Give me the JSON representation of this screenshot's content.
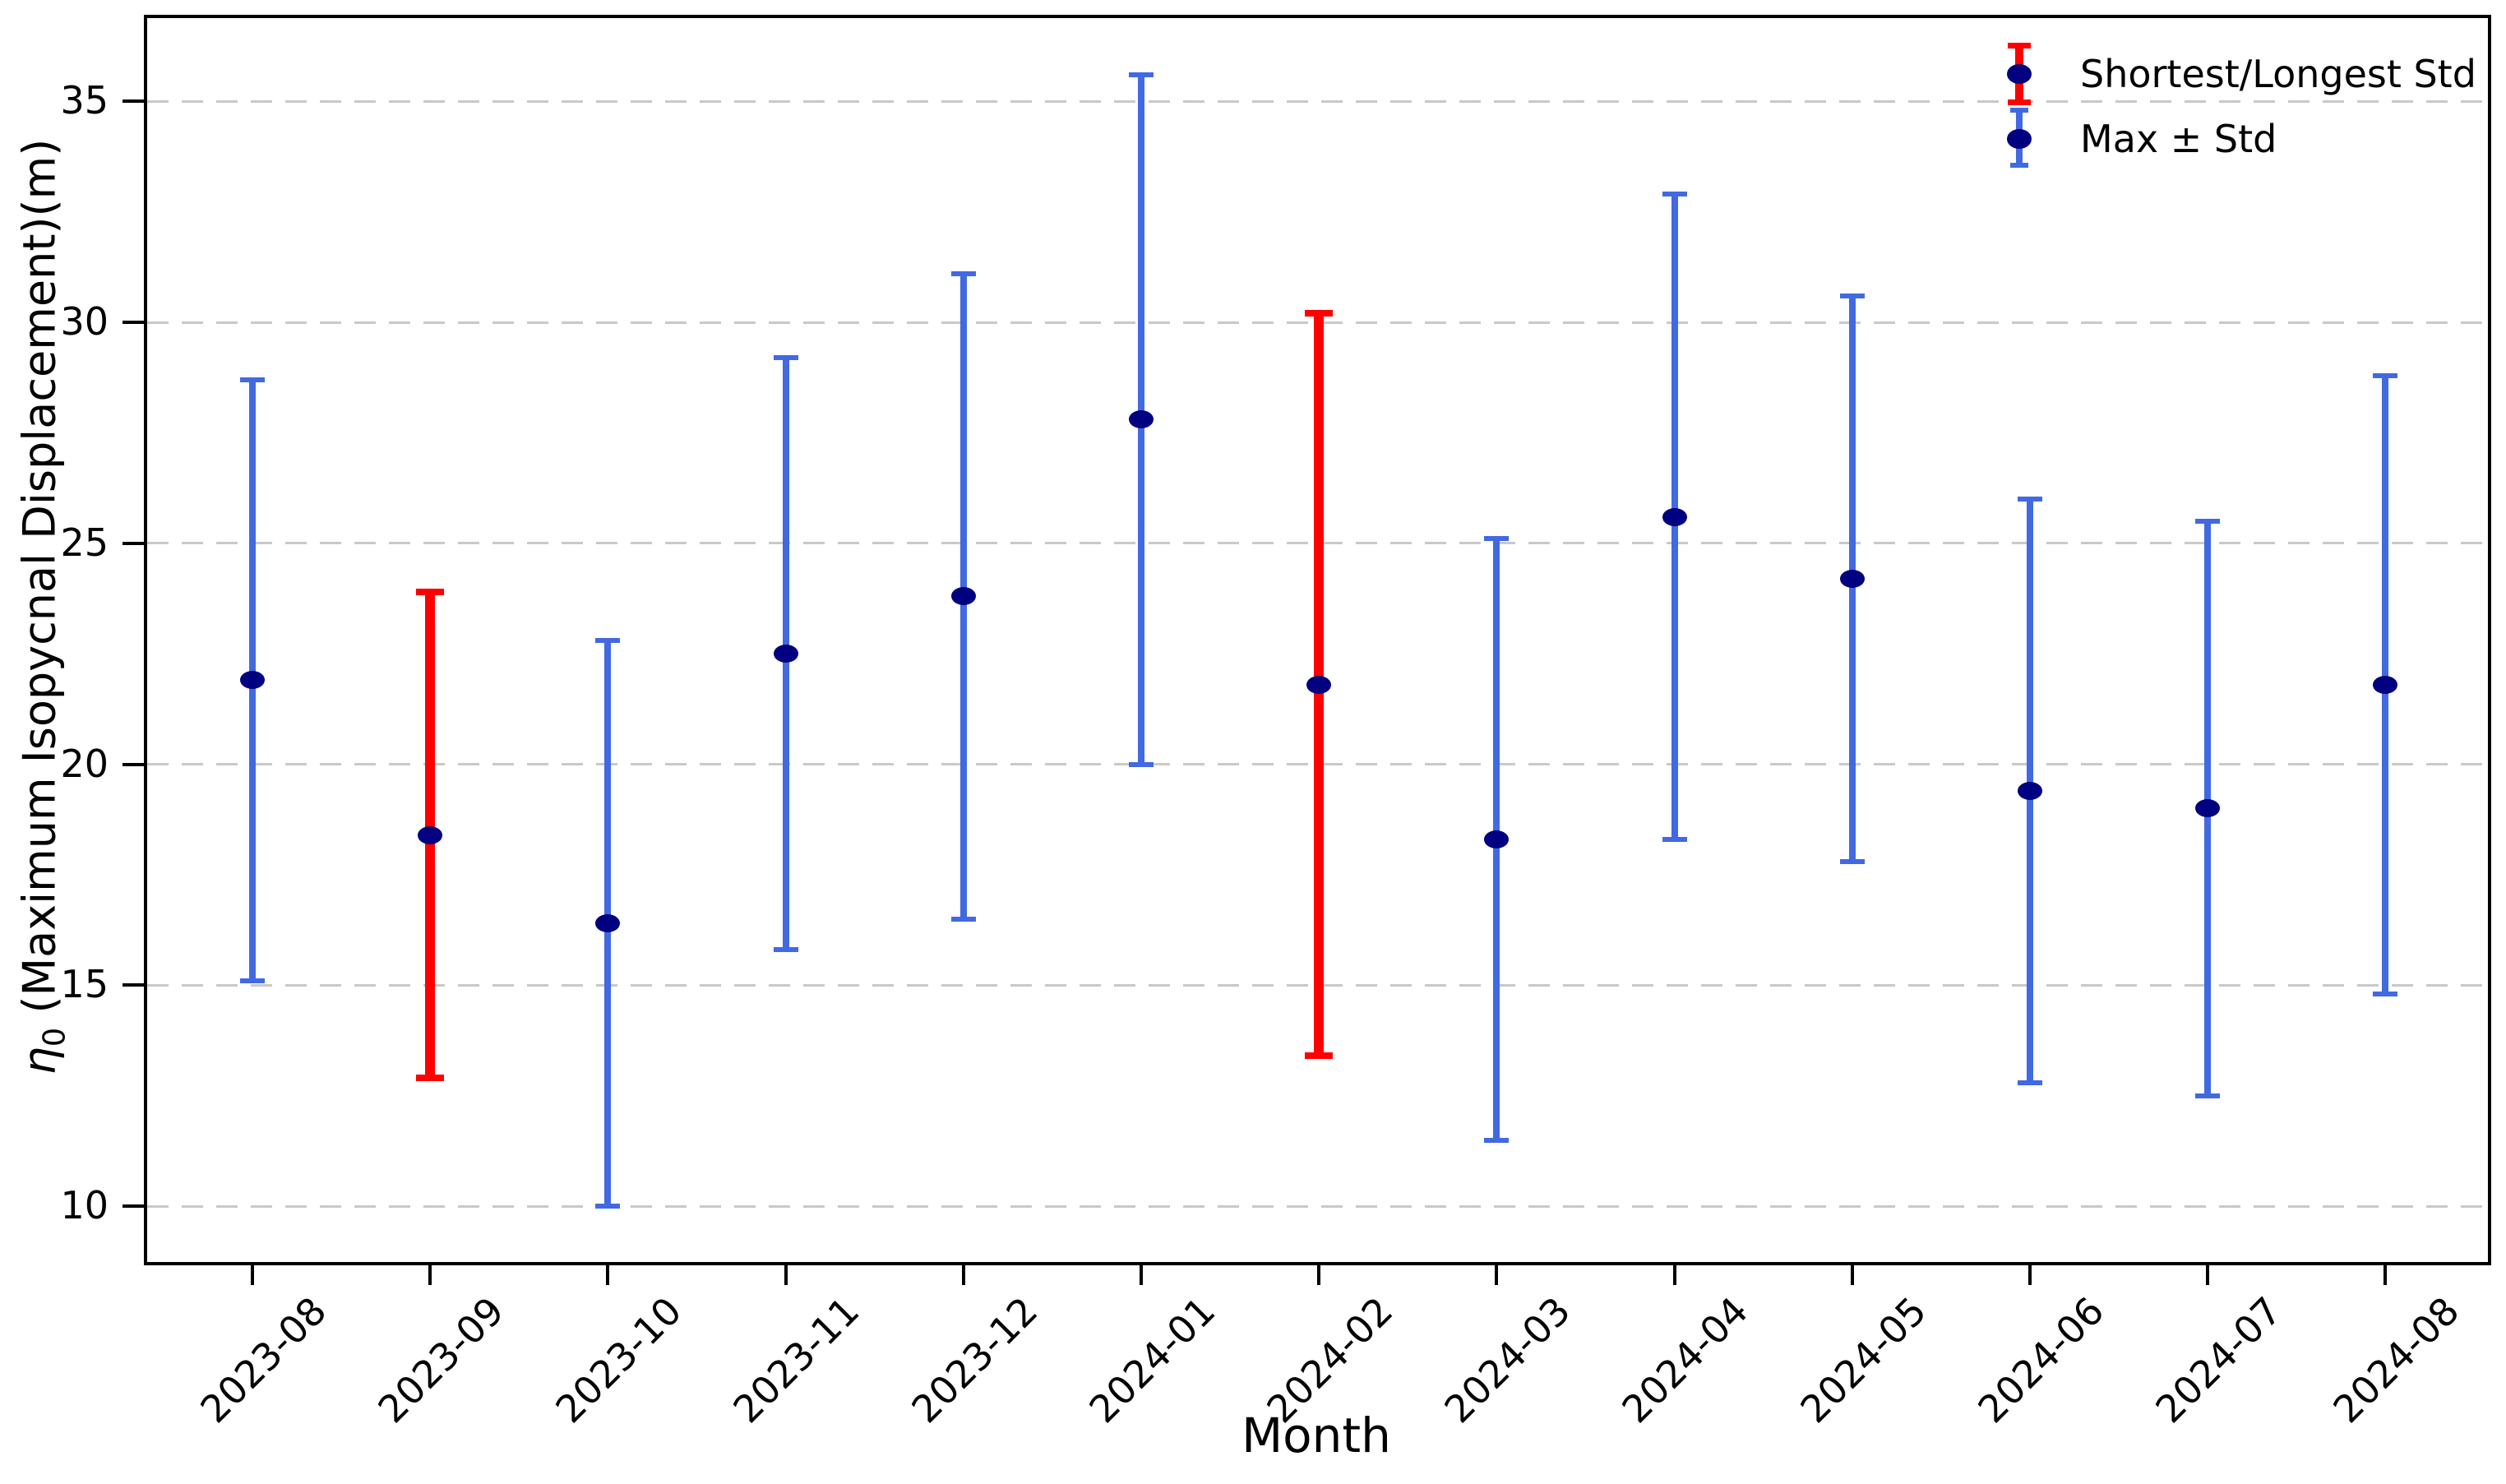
{
  "figure": {
    "xlabel": "Month",
    "ylabel": "η₀ (Maximum Isopycnal Displacement)(m)",
    "legend": [
      {
        "label": "Shortest/Longest Std",
        "bar_color": "#ff0000",
        "marker_color": "#000080"
      },
      {
        "label": "Max ± Std",
        "bar_color": "#4169e1",
        "marker_color": "#000080"
      }
    ]
  },
  "chart_data": {
    "type": "scatter",
    "subtype": "errorbar",
    "title": "",
    "xlabel": "Month",
    "ylabel": "η₀ (Maximum Isopycnal Displacement)(m)",
    "categories": [
      "2023-08",
      "2023-09",
      "2023-10",
      "2023-11",
      "2023-12",
      "2024-01",
      "2024-02",
      "2024-03",
      "2024-04",
      "2024-05",
      "2024-06",
      "2024-07",
      "2024-08"
    ],
    "series": [
      {
        "name": "Max ± Std",
        "values": [
          21.9,
          18.4,
          16.4,
          22.5,
          23.8,
          27.8,
          21.8,
          18.3,
          25.6,
          24.2,
          19.4,
          19.0,
          21.8
        ],
        "std": [
          6.8,
          5.5,
          6.4,
          6.7,
          7.3,
          7.8,
          8.4,
          6.8,
          7.3,
          6.4,
          6.6,
          6.5,
          7.0
        ],
        "bar_colors": [
          "blue",
          "red",
          "blue",
          "blue",
          "blue",
          "blue",
          "red",
          "blue",
          "blue",
          "blue",
          "blue",
          "blue",
          "blue"
        ]
      }
    ],
    "highlight": {
      "shortest_std_month": "2023-09",
      "longest_std_month": "2024-02"
    },
    "yticks": [
      35,
      30,
      25,
      20,
      15,
      10
    ],
    "ylim": [
      8.74,
      36.92
    ],
    "grid": {
      "axis": "y",
      "style": "dashed",
      "color": "#c9c9c9"
    },
    "legend_position": "upper right",
    "legend_frame": false,
    "colors": {
      "blue": "#4169e1",
      "red": "#ff0000",
      "marker": "#000080",
      "text": "#000000"
    }
  }
}
